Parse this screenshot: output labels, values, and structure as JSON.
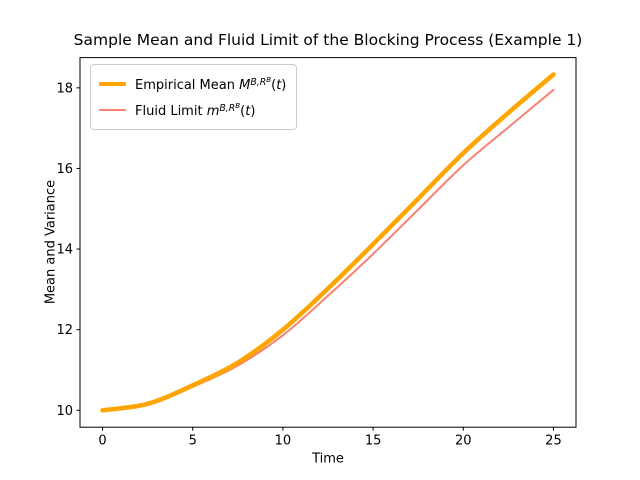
{
  "chart_data": {
    "type": "line",
    "title": "Sample Mean and Fluid Limit of the Blocking Process (Example 1)",
    "xlabel": "Time",
    "ylabel": "Mean and Variance",
    "xlim": [
      -1.25,
      26.25
    ],
    "ylim": [
      9.58,
      18.75
    ],
    "xticks": [
      0,
      5,
      10,
      15,
      20,
      25
    ],
    "yticks": [
      10,
      12,
      14,
      16,
      18
    ],
    "grid": false,
    "legend_position": "upper left",
    "x": [
      0,
      2.5,
      5,
      7.5,
      10,
      12.5,
      15,
      17.5,
      20,
      22.5,
      25
    ],
    "series": [
      {
        "key": "empirical-mean",
        "name": "Empirical Mean M^{B,R^B}(t)",
        "color": "#FFA500",
        "line_width": 4.5,
        "values": [
          10.0,
          10.16,
          10.62,
          11.18,
          12.0,
          13.02,
          14.12,
          15.25,
          16.38,
          17.38,
          18.33
        ],
        "label_parts": [
          {
            "t": "Empirical Mean ",
            "it": false,
            "lv": 0
          },
          {
            "t": "M",
            "it": true,
            "lv": 0
          },
          {
            "t": "B,R",
            "it": true,
            "lv": 1
          },
          {
            "t": "B",
            "it": true,
            "lv": 2
          },
          {
            "t": "(",
            "it": false,
            "lv": 0
          },
          {
            "t": "t",
            "it": true,
            "lv": 0
          },
          {
            "t": ")",
            "it": false,
            "lv": 0
          }
        ]
      },
      {
        "key": "fluid-limit",
        "name": "Fluid Limit m^{B,R^B}(t)",
        "color": "#FA8072",
        "line_width": 2,
        "values": [
          10.0,
          10.13,
          10.58,
          11.11,
          11.86,
          12.84,
          13.88,
          14.98,
          16.08,
          17.02,
          17.95
        ],
        "label_parts": [
          {
            "t": "Fluid Limit ",
            "it": false,
            "lv": 0
          },
          {
            "t": "m",
            "it": true,
            "lv": 0
          },
          {
            "t": "B,R",
            "it": true,
            "lv": 1
          },
          {
            "t": "B",
            "it": true,
            "lv": 2
          },
          {
            "t": "(",
            "it": false,
            "lv": 0
          },
          {
            "t": "t",
            "it": true,
            "lv": 0
          },
          {
            "t": ")",
            "it": false,
            "lv": 0
          }
        ]
      }
    ]
  }
}
